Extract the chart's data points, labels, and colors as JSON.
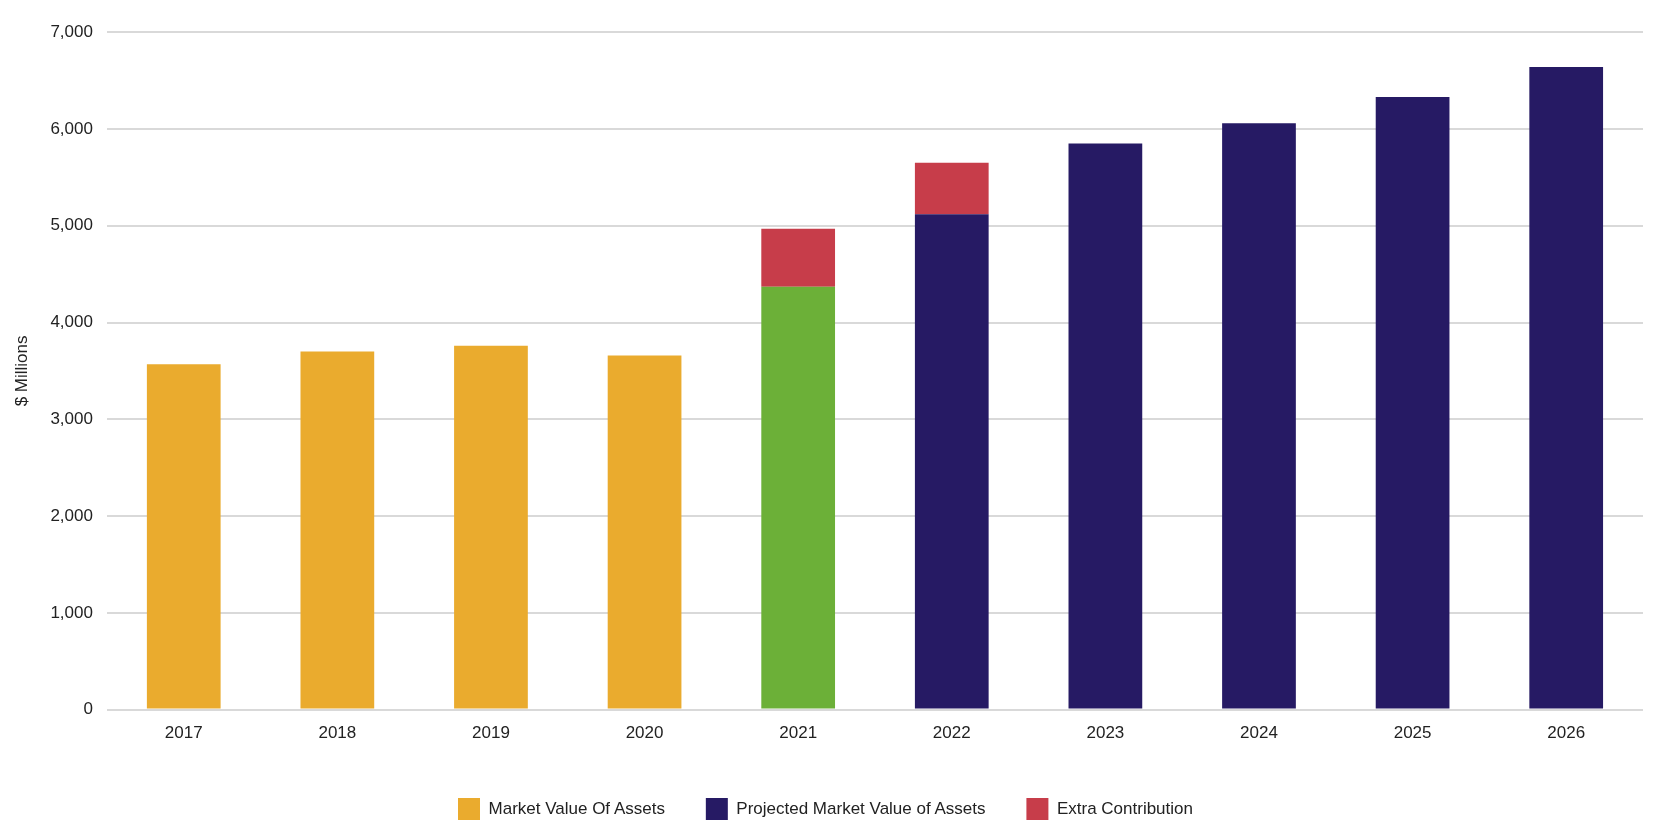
{
  "chart_data": {
    "type": "bar",
    "stacked": true,
    "ylabel": "$ Millions",
    "categories": [
      "2017",
      "2018",
      "2019",
      "2020",
      "2021",
      "2022",
      "2023",
      "2024",
      "2025",
      "2026"
    ],
    "series": [
      {
        "name": "Market Value Of Assets",
        "color": "#eaab2e",
        "values": [
          3570,
          3700,
          3760,
          3660,
          null,
          null,
          null,
          null,
          null,
          null
        ]
      },
      {
        "color": "#6cb038",
        "values": [
          null,
          null,
          null,
          null,
          4370,
          null,
          null,
          null,
          null,
          null
        ]
      },
      {
        "name": "Projected Market Value of Assets",
        "color": "#261a64",
        "values": [
          null,
          null,
          null,
          null,
          null,
          5120,
          5850,
          6060,
          6330,
          6640
        ]
      },
      {
        "name": "Extra Contribution",
        "color": "#c73d4a",
        "values": [
          null,
          null,
          null,
          null,
          600,
          530,
          null,
          null,
          null,
          null
        ]
      }
    ],
    "ylim": [
      0,
      7000
    ],
    "yticks": [
      0,
      {
        "value": 1000,
        "label": "1,000"
      },
      {
        "value": 2000,
        "label": "2,000"
      },
      {
        "value": 3000,
        "label": "3,000"
      },
      {
        "value": 4000,
        "label": "4,000"
      },
      {
        "value": 5000,
        "label": "5,000"
      },
      {
        "value": 6000,
        "label": "6,000"
      },
      {
        "value": 7000,
        "label": "7,000"
      }
    ],
    "grid": "y",
    "legend": "bottom"
  }
}
